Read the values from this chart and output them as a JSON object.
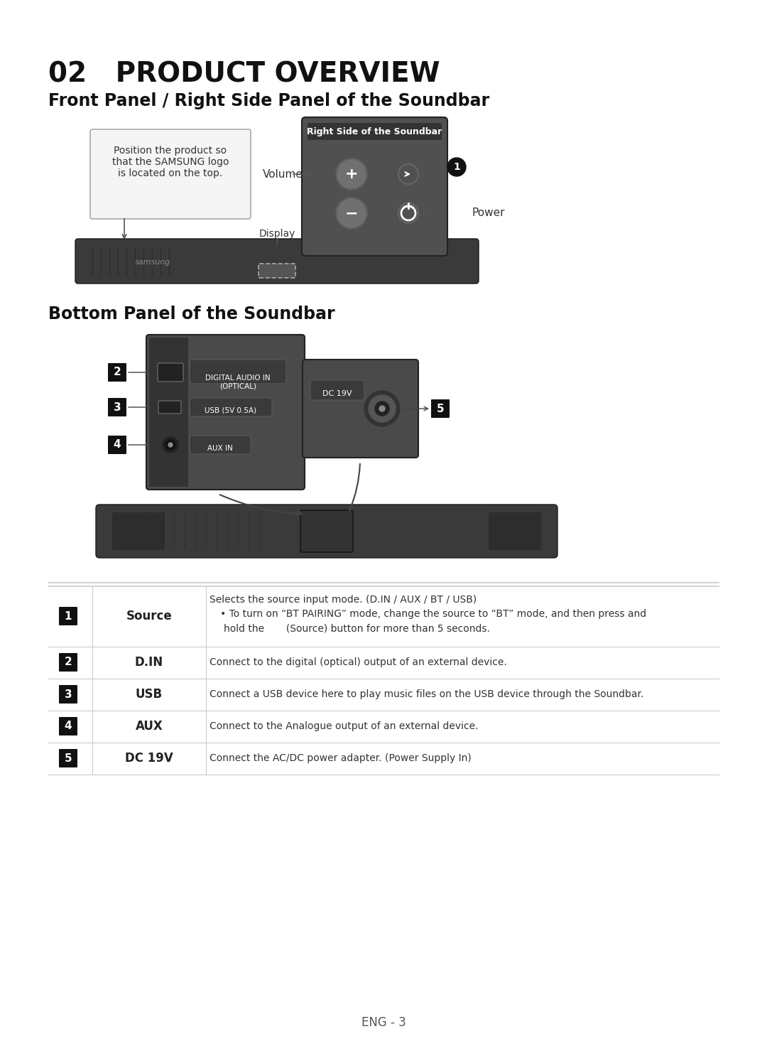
{
  "page_title": "02   PRODUCT OVERVIEW",
  "section1_title": "Front Panel / Right Side Panel of the Soundbar",
  "section2_title": "Bottom Panel of the Soundbar",
  "callout_text": "Position the product so\nthat the SAMSUNG logo\nis located on the top.",
  "right_side_label": "Right Side of the Soundbar",
  "volume_label": "Volume",
  "power_label": "Power",
  "display_label": "Display",
  "table_rows": [
    {
      "num": "1",
      "label": "Source",
      "desc_line1": "Selects the source input mode. (D.IN / AUX / BT / USB)",
      "desc_line2": "To turn on “BT PAIRING” mode, change the source to “BT” mode, and then press and",
      "desc_line3": "hold the       (Source) button for more than 5 seconds."
    },
    {
      "num": "2",
      "label": "D.IN",
      "desc_line1": "Connect to the digital (optical) output of an external device.",
      "desc_line2": "",
      "desc_line3": ""
    },
    {
      "num": "3",
      "label": "USB",
      "desc_line1": "Connect a USB device here to play music files on the USB device through the Soundbar.",
      "desc_line2": "",
      "desc_line3": ""
    },
    {
      "num": "4",
      "label": "AUX",
      "desc_line1": "Connect to the Analogue output of an external device.",
      "desc_line2": "",
      "desc_line3": ""
    },
    {
      "num": "5",
      "label": "DC 19V",
      "desc_line1": "Connect the AC/DC power adapter. (Power Supply In)",
      "desc_line2": "",
      "desc_line3": ""
    }
  ],
  "footer_text": "ENG - 3",
  "bg_color": "#ffffff",
  "dark_color": "#222222",
  "gray_color": "#555555",
  "light_gray": "#888888",
  "soundbar_color": "#3a3a3a",
  "soundbar_dark": "#2a2a2a",
  "panel_color": "#4a4a4a",
  "panel_dark": "#333333",
  "label_bg": "#3a3a3a",
  "label_text": "#ffffff"
}
